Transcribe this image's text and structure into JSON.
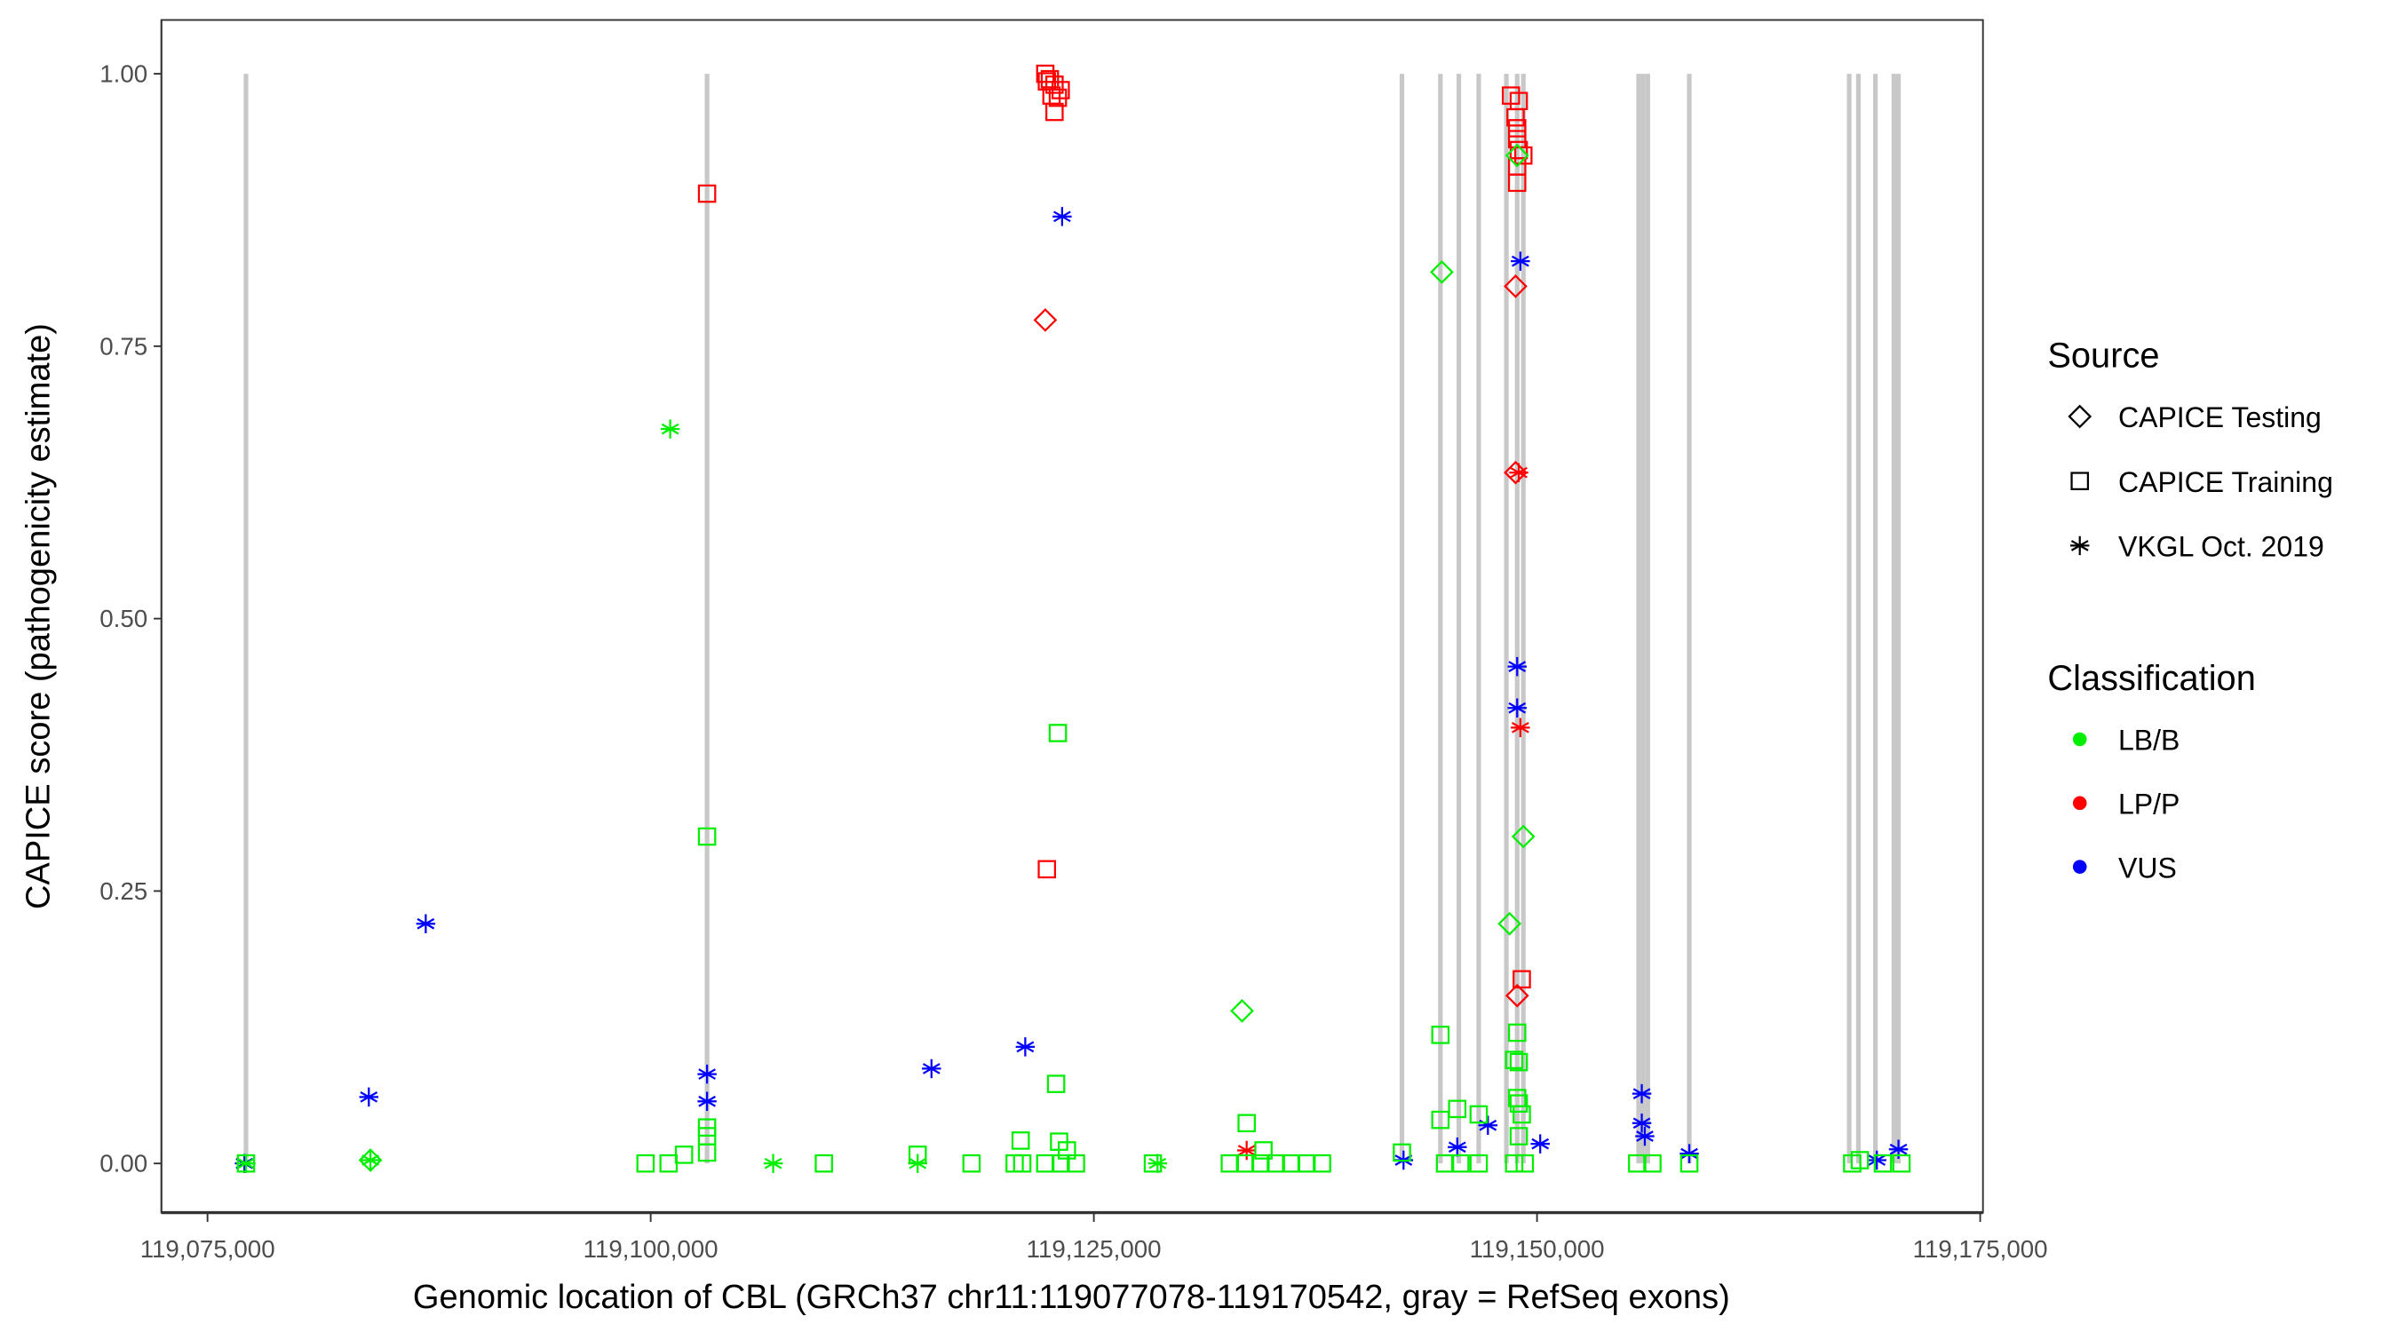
{
  "chart_data": {
    "type": "scatter",
    "xlabel": "Genomic location of CBL (GRCh37 chr11:119077078-119170542, gray = RefSeq exons)",
    "ylabel": "CAPICE score (pathogenicity estimate)",
    "xlim": [
      119072500,
      119175500
    ],
    "ylim": [
      -0.046,
      1.05
    ],
    "x_ticks": [
      119075000,
      119100000,
      119125000,
      119150000,
      119175000
    ],
    "x_tick_labels": [
      "119,075,000",
      "119,100,000",
      "119,125,000",
      "119,150,000",
      "119,175,000"
    ],
    "y_ticks": [
      0,
      0.25,
      0.5,
      0.75,
      1.0
    ],
    "y_tick_labels": [
      "0.00",
      "0.25",
      "0.50",
      "0.75",
      "1.00"
    ],
    "grid": false,
    "legend": {
      "placement": "right",
      "source_title": "Source",
      "sources": [
        "CAPICE Testing",
        "CAPICE Training",
        "VKGL Oct. 2019"
      ],
      "source_shapes": [
        "diamond",
        "square",
        "asterisk"
      ],
      "classification_title": "Classification",
      "classes": [
        "LB/B",
        "LP/P",
        "VUS"
      ],
      "class_colors": [
        "#00ee00",
        "#ff0000",
        "#0000ff"
      ]
    },
    "exon_color": "#c8c8c8",
    "exons": [
      119077170,
      119103180,
      119142380,
      119144550,
      119145590,
      119146710,
      119148270,
      119148880,
      119149230,
      119155730,
      119155990,
      119156250,
      119158590,
      119167610,
      119168130,
      119169090,
      119170130,
      119170390
    ],
    "point_fields": [
      "x",
      "y",
      "source_index",
      "class_index"
    ],
    "points": [
      [
        119087310,
        0.22,
        2,
        2
      ],
      [
        119084100,
        0.061,
        2,
        2
      ],
      [
        119103180,
        0.082,
        2,
        2
      ],
      [
        119103180,
        0.057,
        2,
        2
      ],
      [
        119115840,
        0.087,
        2,
        2
      ],
      [
        119121130,
        0.107,
        2,
        2
      ],
      [
        119123210,
        0.869,
        2,
        2
      ],
      [
        119077080,
        0.0,
        2,
        2
      ],
      [
        119142470,
        0.003,
        2,
        2
      ],
      [
        119145500,
        0.015,
        2,
        2
      ],
      [
        119147230,
        0.035,
        2,
        2
      ],
      [
        119148880,
        0.456,
        2,
        2
      ],
      [
        119148880,
        0.418,
        2,
        2
      ],
      [
        119149060,
        0.828,
        2,
        2
      ],
      [
        119150180,
        0.018,
        2,
        2
      ],
      [
        119155910,
        0.064,
        2,
        2
      ],
      [
        119155910,
        0.037,
        2,
        2
      ],
      [
        119156080,
        0.025,
        2,
        2
      ],
      [
        119158590,
        0.009,
        2,
        2
      ],
      [
        119169170,
        0.003,
        2,
        2
      ],
      [
        119170390,
        0.013,
        2,
        2
      ],
      [
        119133620,
        0.012,
        2,
        1
      ],
      [
        119148970,
        0.634,
        2,
        1
      ],
      [
        119149060,
        0.4,
        2,
        1
      ],
      [
        119122260,
        0.774,
        0,
        1
      ],
      [
        119148790,
        0.805,
        0,
        1
      ],
      [
        119148790,
        0.634,
        0,
        1
      ],
      [
        119148880,
        0.154,
        0,
        1
      ],
      [
        119122260,
        1.0,
        1,
        1
      ],
      [
        119122520,
        0.995,
        1,
        1
      ],
      [
        119122780,
        0.99,
        1,
        1
      ],
      [
        119123130,
        0.985,
        1,
        1
      ],
      [
        119122610,
        0.98,
        1,
        1
      ],
      [
        119122970,
        0.978,
        1,
        1
      ],
      [
        119122780,
        0.965,
        1,
        1
      ],
      [
        119122350,
        0.993,
        1,
        1
      ],
      [
        119103180,
        0.89,
        1,
        1
      ],
      [
        119122350,
        0.27,
        1,
        1
      ],
      [
        119148530,
        0.98,
        1,
        1
      ],
      [
        119148970,
        0.975,
        1,
        1
      ],
      [
        119148790,
        0.96,
        1,
        1
      ],
      [
        119148880,
        0.95,
        1,
        1
      ],
      [
        119148880,
        0.94,
        1,
        1
      ],
      [
        119148970,
        0.93,
        1,
        1
      ],
      [
        119149230,
        0.925,
        1,
        1
      ],
      [
        119148880,
        0.915,
        1,
        1
      ],
      [
        119148880,
        0.9,
        1,
        1
      ],
      [
        119149140,
        0.169,
        1,
        1
      ],
      [
        119101100,
        0.674,
        2,
        0
      ],
      [
        119106910,
        0.0,
        2,
        0
      ],
      [
        119115060,
        0.0,
        2,
        0
      ],
      [
        119084190,
        0.003,
        2,
        0
      ],
      [
        119077170,
        0.0,
        2,
        0
      ],
      [
        119128590,
        0.0,
        2,
        0
      ],
      [
        119144630,
        0.818,
        0,
        0
      ],
      [
        119148880,
        0.925,
        0,
        0
      ],
      [
        119149230,
        0.3,
        0,
        0
      ],
      [
        119148450,
        0.22,
        0,
        0
      ],
      [
        119133360,
        0.14,
        0,
        0
      ],
      [
        119084190,
        0.003,
        0,
        0
      ],
      [
        119103180,
        0.3,
        1,
        0
      ],
      [
        119122970,
        0.395,
        1,
        0
      ],
      [
        119122870,
        0.073,
        1,
        0
      ],
      [
        119144550,
        0.118,
        1,
        0
      ],
      [
        119144550,
        0.04,
        1,
        0
      ],
      [
        119145500,
        0.05,
        1,
        0
      ],
      [
        119146710,
        0.045,
        1,
        0
      ],
      [
        119148710,
        0.095,
        1,
        0
      ],
      [
        119148970,
        0.093,
        1,
        0
      ],
      [
        119148880,
        0.12,
        1,
        0
      ],
      [
        119148880,
        0.06,
        1,
        0
      ],
      [
        119148970,
        0.055,
        1,
        0
      ],
      [
        119149140,
        0.045,
        1,
        0
      ],
      [
        119148970,
        0.025,
        1,
        0
      ],
      [
        119133620,
        0.037,
        1,
        0
      ],
      [
        119134570,
        0.012,
        1,
        0
      ],
      [
        119115060,
        0.008,
        1,
        0
      ],
      [
        119120870,
        0.021,
        1,
        0
      ],
      [
        119123040,
        0.02,
        1,
        0
      ],
      [
        119123480,
        0.012,
        1,
        0
      ],
      [
        119103180,
        0.033,
        1,
        0
      ],
      [
        119103180,
        0.025,
        1,
        0
      ],
      [
        119103180,
        0.01,
        1,
        0
      ],
      [
        119099710,
        0.0,
        1,
        0
      ],
      [
        119101010,
        0.0,
        1,
        0
      ],
      [
        119101880,
        0.008,
        1,
        0
      ],
      [
        119109770,
        0.0,
        1,
        0
      ],
      [
        119118100,
        0.0,
        1,
        0
      ],
      [
        119120530,
        0.0,
        1,
        0
      ],
      [
        119120960,
        0.0,
        1,
        0
      ],
      [
        119122260,
        0.0,
        1,
        0
      ],
      [
        119123130,
        0.0,
        1,
        0
      ],
      [
        119123990,
        0.0,
        1,
        0
      ],
      [
        119128330,
        0.0,
        1,
        0
      ],
      [
        119132670,
        0.0,
        1,
        0
      ],
      [
        119133530,
        0.0,
        1,
        0
      ],
      [
        119134400,
        0.0,
        1,
        0
      ],
      [
        119135270,
        0.0,
        1,
        0
      ],
      [
        119136130,
        0.0,
        1,
        0
      ],
      [
        119137000,
        0.0,
        1,
        0
      ],
      [
        119137870,
        0.0,
        1,
        0
      ],
      [
        119142380,
        0.01,
        1,
        0
      ],
      [
        119144810,
        0.0,
        1,
        0
      ],
      [
        119145670,
        0.0,
        1,
        0
      ],
      [
        119146710,
        0.0,
        1,
        0
      ],
      [
        119148710,
        0.0,
        1,
        0
      ],
      [
        119149310,
        0.0,
        1,
        0
      ],
      [
        119155650,
        0.0,
        1,
        0
      ],
      [
        119156510,
        0.0,
        1,
        0
      ],
      [
        119158590,
        0.0,
        1,
        0
      ],
      [
        119167780,
        0.0,
        1,
        0
      ],
      [
        119168210,
        0.003,
        1,
        0
      ],
      [
        119169510,
        0.0,
        1,
        0
      ],
      [
        119170560,
        0.0,
        1,
        0
      ],
      [
        119077170,
        0.0,
        1,
        0
      ]
    ]
  }
}
